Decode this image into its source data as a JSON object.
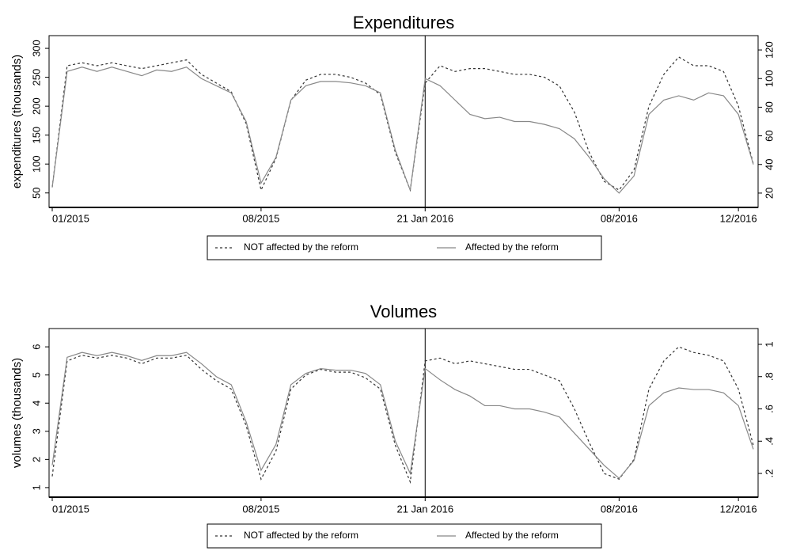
{
  "chart_data": [
    {
      "type": "line",
      "title": "Expenditures",
      "y_label": "expenditures (thousands)",
      "categories": [
        "01/2015",
        null,
        null,
        null,
        null,
        null,
        null,
        null,
        null,
        null,
        null,
        null,
        null,
        null,
        "08/2015",
        null,
        null,
        null,
        null,
        null,
        null,
        null,
        null,
        null,
        null,
        "21 Jan 2016",
        null,
        null,
        null,
        null,
        null,
        null,
        null,
        null,
        null,
        null,
        null,
        null,
        "08/2016",
        null,
        null,
        null,
        null,
        null,
        null,
        null,
        "12/2016",
        null
      ],
      "series": [
        {
          "name": "NOT affected by the reform",
          "color": "#333333",
          "line_style": "dashed",
          "axis": "y",
          "values": [
            60,
            270,
            275,
            270,
            275,
            270,
            265,
            270,
            275,
            280,
            255,
            240,
            225,
            170,
            55,
            110,
            210,
            245,
            255,
            255,
            250,
            240,
            220,
            120,
            55,
            240,
            270,
            260,
            265,
            265,
            260,
            255,
            255,
            250,
            235,
            190,
            120,
            70,
            55,
            90,
            200,
            255,
            285,
            270,
            270,
            260,
            200,
            100
          ]
        },
        {
          "name": "Affected by the reform",
          "color": "#888888",
          "line_style": "solid",
          "axis": "y2",
          "values": [
            24,
            105,
            108,
            105,
            108,
            105,
            102,
            106,
            105,
            108,
            100,
            95,
            90,
            70,
            27,
            45,
            85,
            95,
            98,
            98,
            97,
            95,
            90,
            50,
            22,
            100,
            95,
            85,
            75,
            72,
            73,
            70,
            70,
            68,
            65,
            58,
            45,
            30,
            20,
            32,
            75,
            85,
            88,
            85,
            90,
            88,
            75,
            40
          ]
        }
      ],
      "ylim": [
        25,
        322
      ],
      "yticks": [
        50,
        100,
        150,
        200,
        250,
        300
      ],
      "y2lim": [
        10,
        130
      ],
      "y2ticks": [
        20,
        40,
        60,
        80,
        100,
        120
      ]
    },
    {
      "type": "line",
      "title": "Volumes",
      "y_label": "volumes (thousands)",
      "categories": [
        "01/2015",
        null,
        null,
        null,
        null,
        null,
        null,
        null,
        null,
        null,
        null,
        null,
        null,
        null,
        "08/2015",
        null,
        null,
        null,
        null,
        null,
        null,
        null,
        null,
        null,
        null,
        "21 Jan 2016",
        null,
        null,
        null,
        null,
        null,
        null,
        null,
        null,
        null,
        null,
        null,
        null,
        "08/2016",
        null,
        null,
        null,
        null,
        null,
        null,
        null,
        "12/2016",
        null
      ],
      "series": [
        {
          "name": "NOT affected by the reform",
          "color": "#333333",
          "line_style": "dashed",
          "axis": "y",
          "values": [
            1.4,
            5.5,
            5.7,
            5.6,
            5.7,
            5.6,
            5.4,
            5.6,
            5.6,
            5.7,
            5.2,
            4.8,
            4.5,
            3.2,
            1.3,
            2.3,
            4.5,
            5.0,
            5.2,
            5.1,
            5.1,
            4.9,
            4.5,
            2.5,
            1.2,
            5.5,
            5.6,
            5.4,
            5.5,
            5.4,
            5.3,
            5.2,
            5.2,
            5.0,
            4.8,
            3.8,
            2.6,
            1.5,
            1.3,
            2.0,
            4.5,
            5.5,
            6.0,
            5.8,
            5.7,
            5.5,
            4.5,
            2.5
          ]
        },
        {
          "name": "Affected by the reform",
          "color": "#888888",
          "line_style": "solid",
          "axis": "y2",
          "values": [
            0.25,
            0.92,
            0.95,
            0.93,
            0.95,
            0.93,
            0.9,
            0.93,
            0.93,
            0.95,
            0.88,
            0.8,
            0.75,
            0.52,
            0.22,
            0.38,
            0.75,
            0.82,
            0.85,
            0.84,
            0.84,
            0.82,
            0.75,
            0.4,
            0.2,
            0.85,
            0.78,
            0.72,
            0.68,
            0.62,
            0.62,
            0.6,
            0.6,
            0.58,
            0.55,
            0.45,
            0.35,
            0.25,
            0.17,
            0.28,
            0.62,
            0.7,
            0.73,
            0.72,
            0.72,
            0.7,
            0.62,
            0.35
          ]
        }
      ],
      "ylim": [
        0.66,
        6.65
      ],
      "yticks": [
        1,
        2,
        3,
        4,
        5,
        6
      ],
      "y2lim": [
        0.053,
        1.098
      ],
      "y2ticks": [
        {
          "value": 0.2,
          "label": ".2"
        },
        {
          "value": 0.4,
          "label": ".4"
        },
        {
          "value": 0.6,
          "label": ".6"
        },
        {
          "value": 0.8,
          "label": ".8"
        },
        1
      ]
    }
  ]
}
